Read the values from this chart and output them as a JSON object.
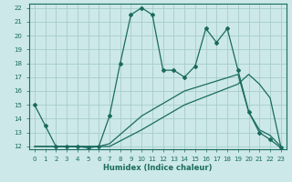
{
  "xlabel": "Humidex (Indice chaleur)",
  "bg_color": "#cce8e8",
  "grid_color": "#b0d4d4",
  "line_color": "#1a6b5e",
  "xlim": [
    -0.5,
    23.5
  ],
  "ylim": [
    11.8,
    22.3
  ],
  "xticks": [
    0,
    1,
    2,
    3,
    4,
    5,
    6,
    7,
    8,
    9,
    10,
    11,
    12,
    13,
    14,
    15,
    16,
    17,
    18,
    19,
    20,
    21,
    22,
    23
  ],
  "xtick_labels": [
    "0",
    "1",
    "2",
    "3",
    "4",
    "5",
    "6",
    "7",
    "8",
    "9",
    "10",
    "11",
    "12",
    "13",
    "14",
    "15",
    "16",
    "17",
    "18",
    "19",
    "20",
    "21",
    "22",
    "23"
  ],
  "yticks": [
    12,
    13,
    14,
    15,
    16,
    17,
    18,
    19,
    20,
    21,
    22
  ],
  "ytick_labels": [
    "12",
    "13",
    "14",
    "15",
    "16",
    "17",
    "18",
    "19",
    "20",
    "21",
    "22"
  ],
  "line1_x": [
    0,
    1,
    2,
    3,
    4,
    5,
    6,
    7,
    8,
    9,
    10,
    11,
    12,
    13,
    14,
    15,
    16,
    17,
    18,
    19,
    20,
    21,
    22,
    23
  ],
  "line1_y": [
    15.0,
    13.5,
    12.0,
    12.0,
    12.0,
    11.9,
    12.0,
    14.2,
    18.0,
    21.5,
    22.0,
    21.5,
    17.5,
    17.5,
    17.0,
    17.8,
    20.5,
    19.5,
    20.5,
    17.5,
    14.5,
    13.0,
    12.5,
    11.9
  ],
  "line2_x": [
    0,
    2,
    6,
    7,
    10,
    14,
    19,
    20,
    21,
    22,
    23
  ],
  "line2_y": [
    12.0,
    12.0,
    12.0,
    12.2,
    14.2,
    16.0,
    17.2,
    14.5,
    13.2,
    12.8,
    12.0
  ],
  "line3_x": [
    0,
    2,
    6,
    7,
    10,
    14,
    19,
    20,
    21,
    22,
    23
  ],
  "line3_y": [
    12.0,
    12.0,
    12.0,
    12.0,
    13.2,
    15.0,
    16.5,
    17.2,
    16.5,
    15.5,
    12.0
  ]
}
